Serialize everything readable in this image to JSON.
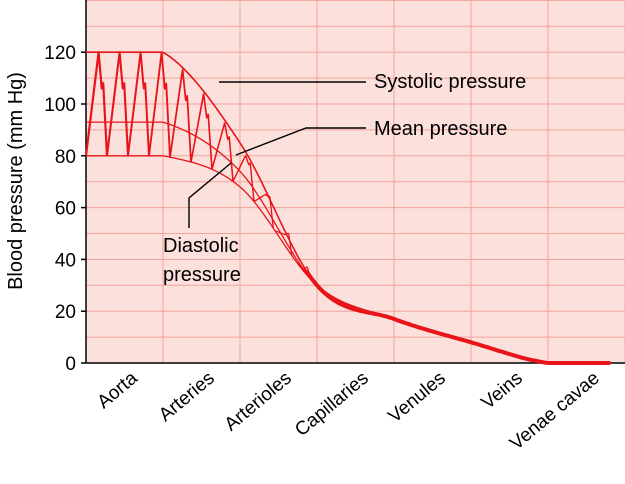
{
  "chart_data": {
    "type": "line",
    "ylabel": "Blood pressure (mm Hg)",
    "ylim": [
      0,
      140
    ],
    "yticks": [
      0,
      20,
      40,
      60,
      80,
      100,
      120
    ],
    "categories": [
      "Aorta",
      "Arteries",
      "Arterioles",
      "Capillaries",
      "Venules",
      "Veins",
      "Venae cavae"
    ],
    "series": [
      {
        "name": "Systolic pressure",
        "values": [
          120,
          120,
          85,
          30,
          17,
          8,
          0
        ]
      },
      {
        "name": "Mean pressure",
        "values": [
          93,
          93,
          74,
          30,
          17,
          8,
          0
        ]
      },
      {
        "name": "Diastolic pressure",
        "values": [
          80,
          80,
          68,
          30,
          17,
          8,
          0
        ]
      }
    ],
    "annotations": [
      "Systolic pressure",
      "Mean pressure",
      "Diastolic",
      "pressure"
    ],
    "grid": true,
    "colors": {
      "background": "#fbe0dc",
      "grid": "#f2a39a",
      "line": "#e8141a"
    }
  }
}
